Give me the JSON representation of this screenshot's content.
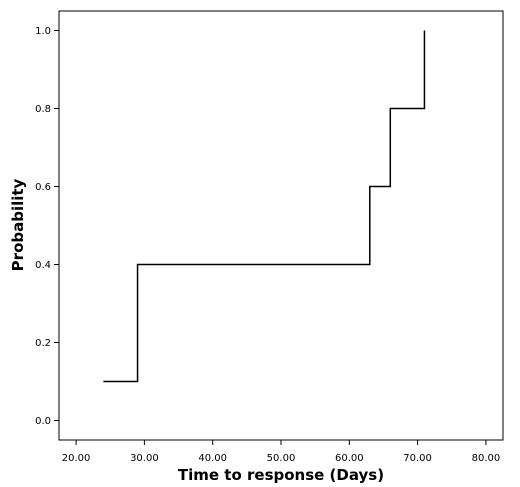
{
  "chart_data": {
    "type": "line",
    "step": true,
    "xlabel": "Time to response (Days)",
    "ylabel": "Probability",
    "xlim": [
      17.5,
      82.5
    ],
    "ylim": [
      -0.05,
      1.05
    ],
    "x_ticks": [
      "20.00",
      "30.00",
      "40.00",
      "50.00",
      "60.00",
      "70.00",
      "80.00"
    ],
    "x_tick_values": [
      20,
      30,
      40,
      50,
      60,
      70,
      80
    ],
    "y_ticks": [
      "0.0",
      "0.2",
      "0.4",
      "0.6",
      "0.8",
      "1.0"
    ],
    "y_tick_values": [
      0.0,
      0.2,
      0.4,
      0.6,
      0.8,
      1.0
    ],
    "grid": false,
    "legend": "none",
    "series": [
      {
        "x": [
          24,
          29,
          63,
          66,
          71
        ],
        "y": [
          0.1,
          0.4,
          0.6,
          0.8,
          1.0
        ],
        "x_end": 71
      }
    ],
    "line_color": "#000000"
  }
}
